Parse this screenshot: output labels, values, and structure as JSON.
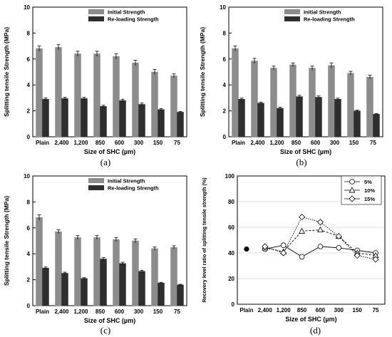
{
  "colors": {
    "initial": "#8c8c8c",
    "reloading": "#2e2e2e",
    "axis": "#000000",
    "grid": "#d9d9d9",
    "marker_5": "#ffffff",
    "line_d": "#000000"
  },
  "chart_data": [
    {
      "id": "a",
      "type": "bar",
      "caption": "(a)",
      "xlabel": "Size of SHC (µm)",
      "ylabel": "Splitting tensile Strength (MPa)",
      "ylim": [
        0,
        10
      ],
      "yticks": [
        "0",
        "2",
        "4",
        "6",
        "8",
        "10"
      ],
      "legend_position": "top-right",
      "categories": [
        "Plain",
        "2,400",
        "1,200",
        "850",
        "600",
        "300",
        "150",
        "75"
      ],
      "series": [
        {
          "name": "Initial Strength",
          "values": [
            6.8,
            6.9,
            6.4,
            6.4,
            6.2,
            5.7,
            5.0,
            4.7
          ],
          "errors": [
            0.2,
            0.2,
            0.2,
            0.2,
            0.2,
            0.2,
            0.2,
            0.15
          ]
        },
        {
          "name": "Re-loading Strength",
          "values": [
            2.9,
            2.95,
            2.95,
            2.35,
            2.8,
            2.5,
            2.1,
            1.9
          ],
          "errors": [
            0.1,
            0.1,
            0.1,
            0.08,
            0.1,
            0.1,
            0.08,
            0.05
          ]
        }
      ]
    },
    {
      "id": "b",
      "type": "bar",
      "caption": "(b)",
      "xlabel": "Size of SHC (µm)",
      "ylabel": "Splitting tensile Strength (MPa)",
      "ylim": [
        0,
        10
      ],
      "yticks": [
        "0",
        "2",
        "4",
        "6",
        "8",
        "10"
      ],
      "legend_position": "top-right",
      "categories": [
        "Plain",
        "2,400",
        "1,200",
        "850",
        "600",
        "300",
        "150",
        "75"
      ],
      "series": [
        {
          "name": "Initial Strength",
          "values": [
            6.8,
            5.85,
            5.3,
            5.55,
            5.3,
            5.5,
            4.9,
            4.6
          ],
          "errors": [
            0.2,
            0.2,
            0.15,
            0.15,
            0.15,
            0.2,
            0.15,
            0.15
          ]
        },
        {
          "name": "Re-loading Strength",
          "values": [
            2.9,
            2.6,
            2.2,
            3.1,
            3.05,
            2.9,
            2.0,
            1.75
          ],
          "errors": [
            0.08,
            0.08,
            0.08,
            0.1,
            0.1,
            0.08,
            0.06,
            0.05
          ]
        }
      ]
    },
    {
      "id": "c",
      "type": "bar",
      "caption": "(c)",
      "xlabel": "Size of SHC (µm)",
      "ylabel": "Splitting tensile Strength (MPa)",
      "ylim": [
        0,
        10
      ],
      "yticks": [
        "0",
        "2",
        "4",
        "6",
        "8",
        "10"
      ],
      "legend_position": "top-right",
      "categories": [
        "Plain",
        "2,400",
        "1,200",
        "850",
        "600",
        "300",
        "150",
        "75"
      ],
      "series": [
        {
          "name": "Initial Strength",
          "values": [
            6.8,
            5.7,
            5.25,
            5.25,
            5.1,
            5.0,
            4.4,
            4.5
          ],
          "errors": [
            0.2,
            0.15,
            0.15,
            0.15,
            0.15,
            0.15,
            0.12,
            0.12
          ]
        },
        {
          "name": "Re-loading Strength",
          "values": [
            2.9,
            2.5,
            2.1,
            3.6,
            3.25,
            2.65,
            1.75,
            1.6
          ],
          "errors": [
            0.08,
            0.08,
            0.06,
            0.12,
            0.1,
            0.08,
            0.05,
            0.05
          ]
        }
      ]
    },
    {
      "id": "d",
      "type": "line",
      "caption": "(d)",
      "xlabel": "Size of SHC (µm)",
      "ylabel": "Recovery level ratio of splitting tensile strength (%)",
      "ylim": [
        0,
        100
      ],
      "yticks": [
        "0",
        "20",
        "40",
        "60",
        "80",
        "100"
      ],
      "grid": true,
      "legend_position": "top-right",
      "categories": [
        "Plain",
        "2,400",
        "1,200",
        "850",
        "600",
        "300",
        "150",
        "75"
      ],
      "plain_value": 43,
      "series": [
        {
          "name": "5%",
          "marker": "circle",
          "values": [
            43,
            43,
            46,
            37,
            45,
            44,
            42,
            40
          ]
        },
        {
          "name": "10%",
          "marker": "triangle",
          "values": [
            43,
            44,
            41,
            57,
            58,
            53,
            40,
            38
          ]
        },
        {
          "name": "15%",
          "marker": "diamond",
          "values": [
            43,
            45,
            40,
            68,
            64,
            53,
            38,
            35
          ]
        }
      ]
    }
  ]
}
